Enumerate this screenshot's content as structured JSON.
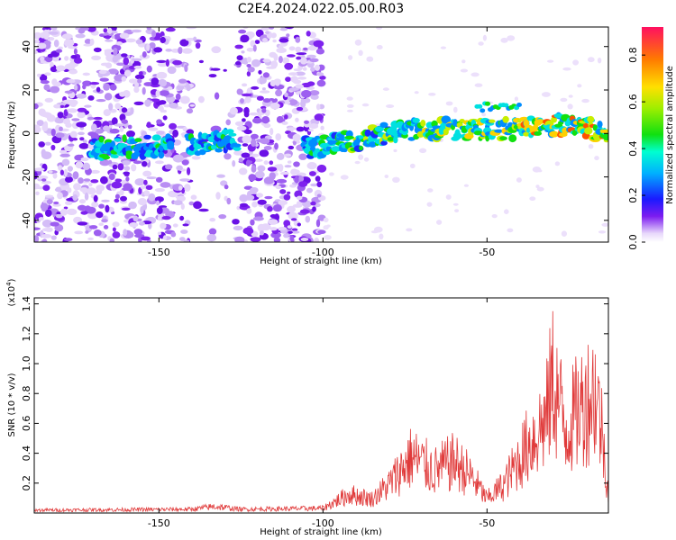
{
  "title": "C2E4.2024.022.05.00.R03",
  "chart_data": [
    {
      "type": "heatmap",
      "xlabel": "Height of straight line (km)",
      "ylabel": "Frequency (Hz)",
      "xlim": [
        -188,
        -13
      ],
      "ylim": [
        -50,
        49
      ],
      "xticks": [
        -150,
        -100,
        -50
      ],
      "yticks": [
        -40,
        -20,
        0,
        20,
        40
      ],
      "colorbar": {
        "label": "Normalized spectral amplitude",
        "range": [
          0.0,
          0.92
        ],
        "ticks": [
          0.0,
          0.2,
          0.4,
          0.6,
          0.8
        ]
      },
      "ridge": [
        {
          "x": -168,
          "freq": -7
        },
        {
          "x": -155,
          "freq": -6
        },
        {
          "x": -148,
          "freq": -6
        },
        {
          "x": -137,
          "freq": -5
        },
        {
          "x": -128,
          "freq": -3
        },
        {
          "x": -104,
          "freq": -7
        },
        {
          "x": -93,
          "freq": -4
        },
        {
          "x": -80,
          "freq": 0
        },
        {
          "x": -70,
          "freq": 2
        },
        {
          "x": -60,
          "freq": 2
        },
        {
          "x": -50,
          "freq": 2
        },
        {
          "x": -40,
          "freq": 2
        },
        {
          "x": -30,
          "freq": 4
        },
        {
          "x": -20,
          "freq": 3
        },
        {
          "x": -13,
          "freq": -1
        }
      ]
    },
    {
      "type": "line",
      "xlabel": "Height of straight line (km)",
      "ylabel": "SNR (10 * v/v)",
      "scale_label": "(x10",
      "scale_exp": "4",
      "xlim": [
        -188,
        -13
      ],
      "ylim": [
        0,
        14400
      ],
      "xticks": [
        -150,
        -100,
        -50
      ],
      "yticks": [
        2000,
        4000,
        6000,
        8000,
        10000,
        12000,
        14000
      ],
      "ytick_labels": [
        "0.2",
        "0.4",
        "0.6",
        "0.8",
        "1.0",
        "1.2",
        "1.4"
      ],
      "color": "#e03a3a",
      "envelope": [
        {
          "x": -188,
          "y": 300
        },
        {
          "x": -140,
          "y": 400
        },
        {
          "x": -133,
          "y": 700
        },
        {
          "x": -125,
          "y": 400
        },
        {
          "x": -100,
          "y": 500
        },
        {
          "x": -92,
          "y": 2000
        },
        {
          "x": -85,
          "y": 1500
        },
        {
          "x": -80,
          "y": 3000
        },
        {
          "x": -73,
          "y": 6000
        },
        {
          "x": -66,
          "y": 4500
        },
        {
          "x": -60,
          "y": 5500
        },
        {
          "x": -55,
          "y": 4000
        },
        {
          "x": -50,
          "y": 1500
        },
        {
          "x": -45,
          "y": 3000
        },
        {
          "x": -38,
          "y": 7000
        },
        {
          "x": -32,
          "y": 10000
        },
        {
          "x": -30,
          "y": 14400
        },
        {
          "x": -26,
          "y": 9000
        },
        {
          "x": -20,
          "y": 12000
        },
        {
          "x": -17,
          "y": 13000
        },
        {
          "x": -15,
          "y": 9000
        },
        {
          "x": -13,
          "y": 2000
        }
      ]
    }
  ]
}
